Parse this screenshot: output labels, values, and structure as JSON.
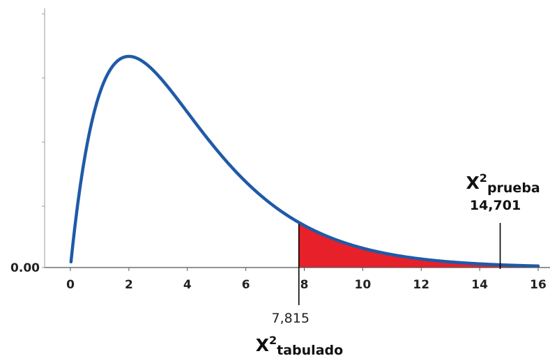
{
  "chart_data": {
    "type": "area",
    "distribution": "chi-square",
    "degrees_of_freedom": 4,
    "x_ticks": [
      0,
      2,
      4,
      6,
      8,
      10,
      12,
      14,
      16
    ],
    "x_tick_labels": [
      "0",
      "2",
      "4",
      "6",
      "8",
      "10",
      "12",
      "14",
      "16"
    ],
    "y_tick_label": "0.00",
    "xlim": [
      0,
      16
    ],
    "ylim": [
      0,
      0.21
    ],
    "grid": false,
    "curve_color": "#1f5aa8",
    "shade_color": "#e8202a",
    "critical_value": {
      "value": 7.815,
      "label": "7,815",
      "symbol": "X",
      "superscript": "2",
      "subscript": "tabulado"
    },
    "test_statistic": {
      "value": 14.701,
      "label": "14,701",
      "symbol": "X",
      "superscript": "2",
      "subscript": "prueba"
    }
  }
}
